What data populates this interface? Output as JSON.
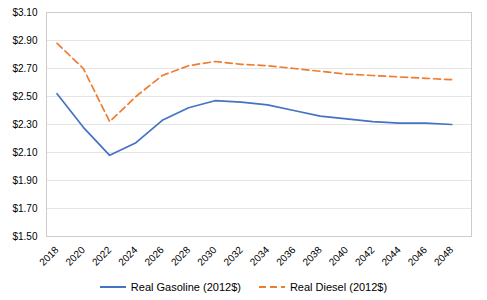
{
  "chart_data": {
    "type": "line",
    "x": [
      2018,
      2020,
      2022,
      2024,
      2026,
      2028,
      2030,
      2032,
      2034,
      2036,
      2038,
      2040,
      2042,
      2044,
      2046,
      2048
    ],
    "series": [
      {
        "name": "Real Gasoline (2012$)",
        "color": "#4472C4",
        "line_style": "solid",
        "values": [
          2.52,
          2.28,
          2.08,
          2.17,
          2.33,
          2.42,
          2.47,
          2.46,
          2.44,
          2.4,
          2.36,
          2.34,
          2.32,
          2.31,
          2.31,
          2.3
        ]
      },
      {
        "name": "Real Diesel (2012$)",
        "color": "#ED7D31",
        "line_style": "dashed",
        "values": [
          2.88,
          2.7,
          2.32,
          2.5,
          2.65,
          2.72,
          2.75,
          2.73,
          2.72,
          2.7,
          2.68,
          2.66,
          2.65,
          2.64,
          2.63,
          2.62
        ]
      }
    ],
    "xlim": [
      2017.2,
      2049.5
    ],
    "xticks": [
      2018,
      2020,
      2022,
      2024,
      2026,
      2028,
      2030,
      2032,
      2034,
      2036,
      2038,
      2040,
      2042,
      2044,
      2046,
      2048
    ],
    "ylim": [
      1.5,
      3.1
    ],
    "yticks": [
      {
        "value": 1.5,
        "label": "$1.50"
      },
      {
        "value": 1.7,
        "label": "$1.70"
      },
      {
        "value": 1.9,
        "label": "$1.90"
      },
      {
        "value": 2.1,
        "label": "$2.10"
      },
      {
        "value": 2.3,
        "label": "$2.30"
      },
      {
        "value": 2.5,
        "label": "$2.50"
      },
      {
        "value": 2.7,
        "label": "$2.70"
      },
      {
        "value": 2.9,
        "label": "$2.90"
      },
      {
        "value": 3.1,
        "label": "$3.10"
      }
    ],
    "grid": true,
    "legend": "bottom"
  }
}
